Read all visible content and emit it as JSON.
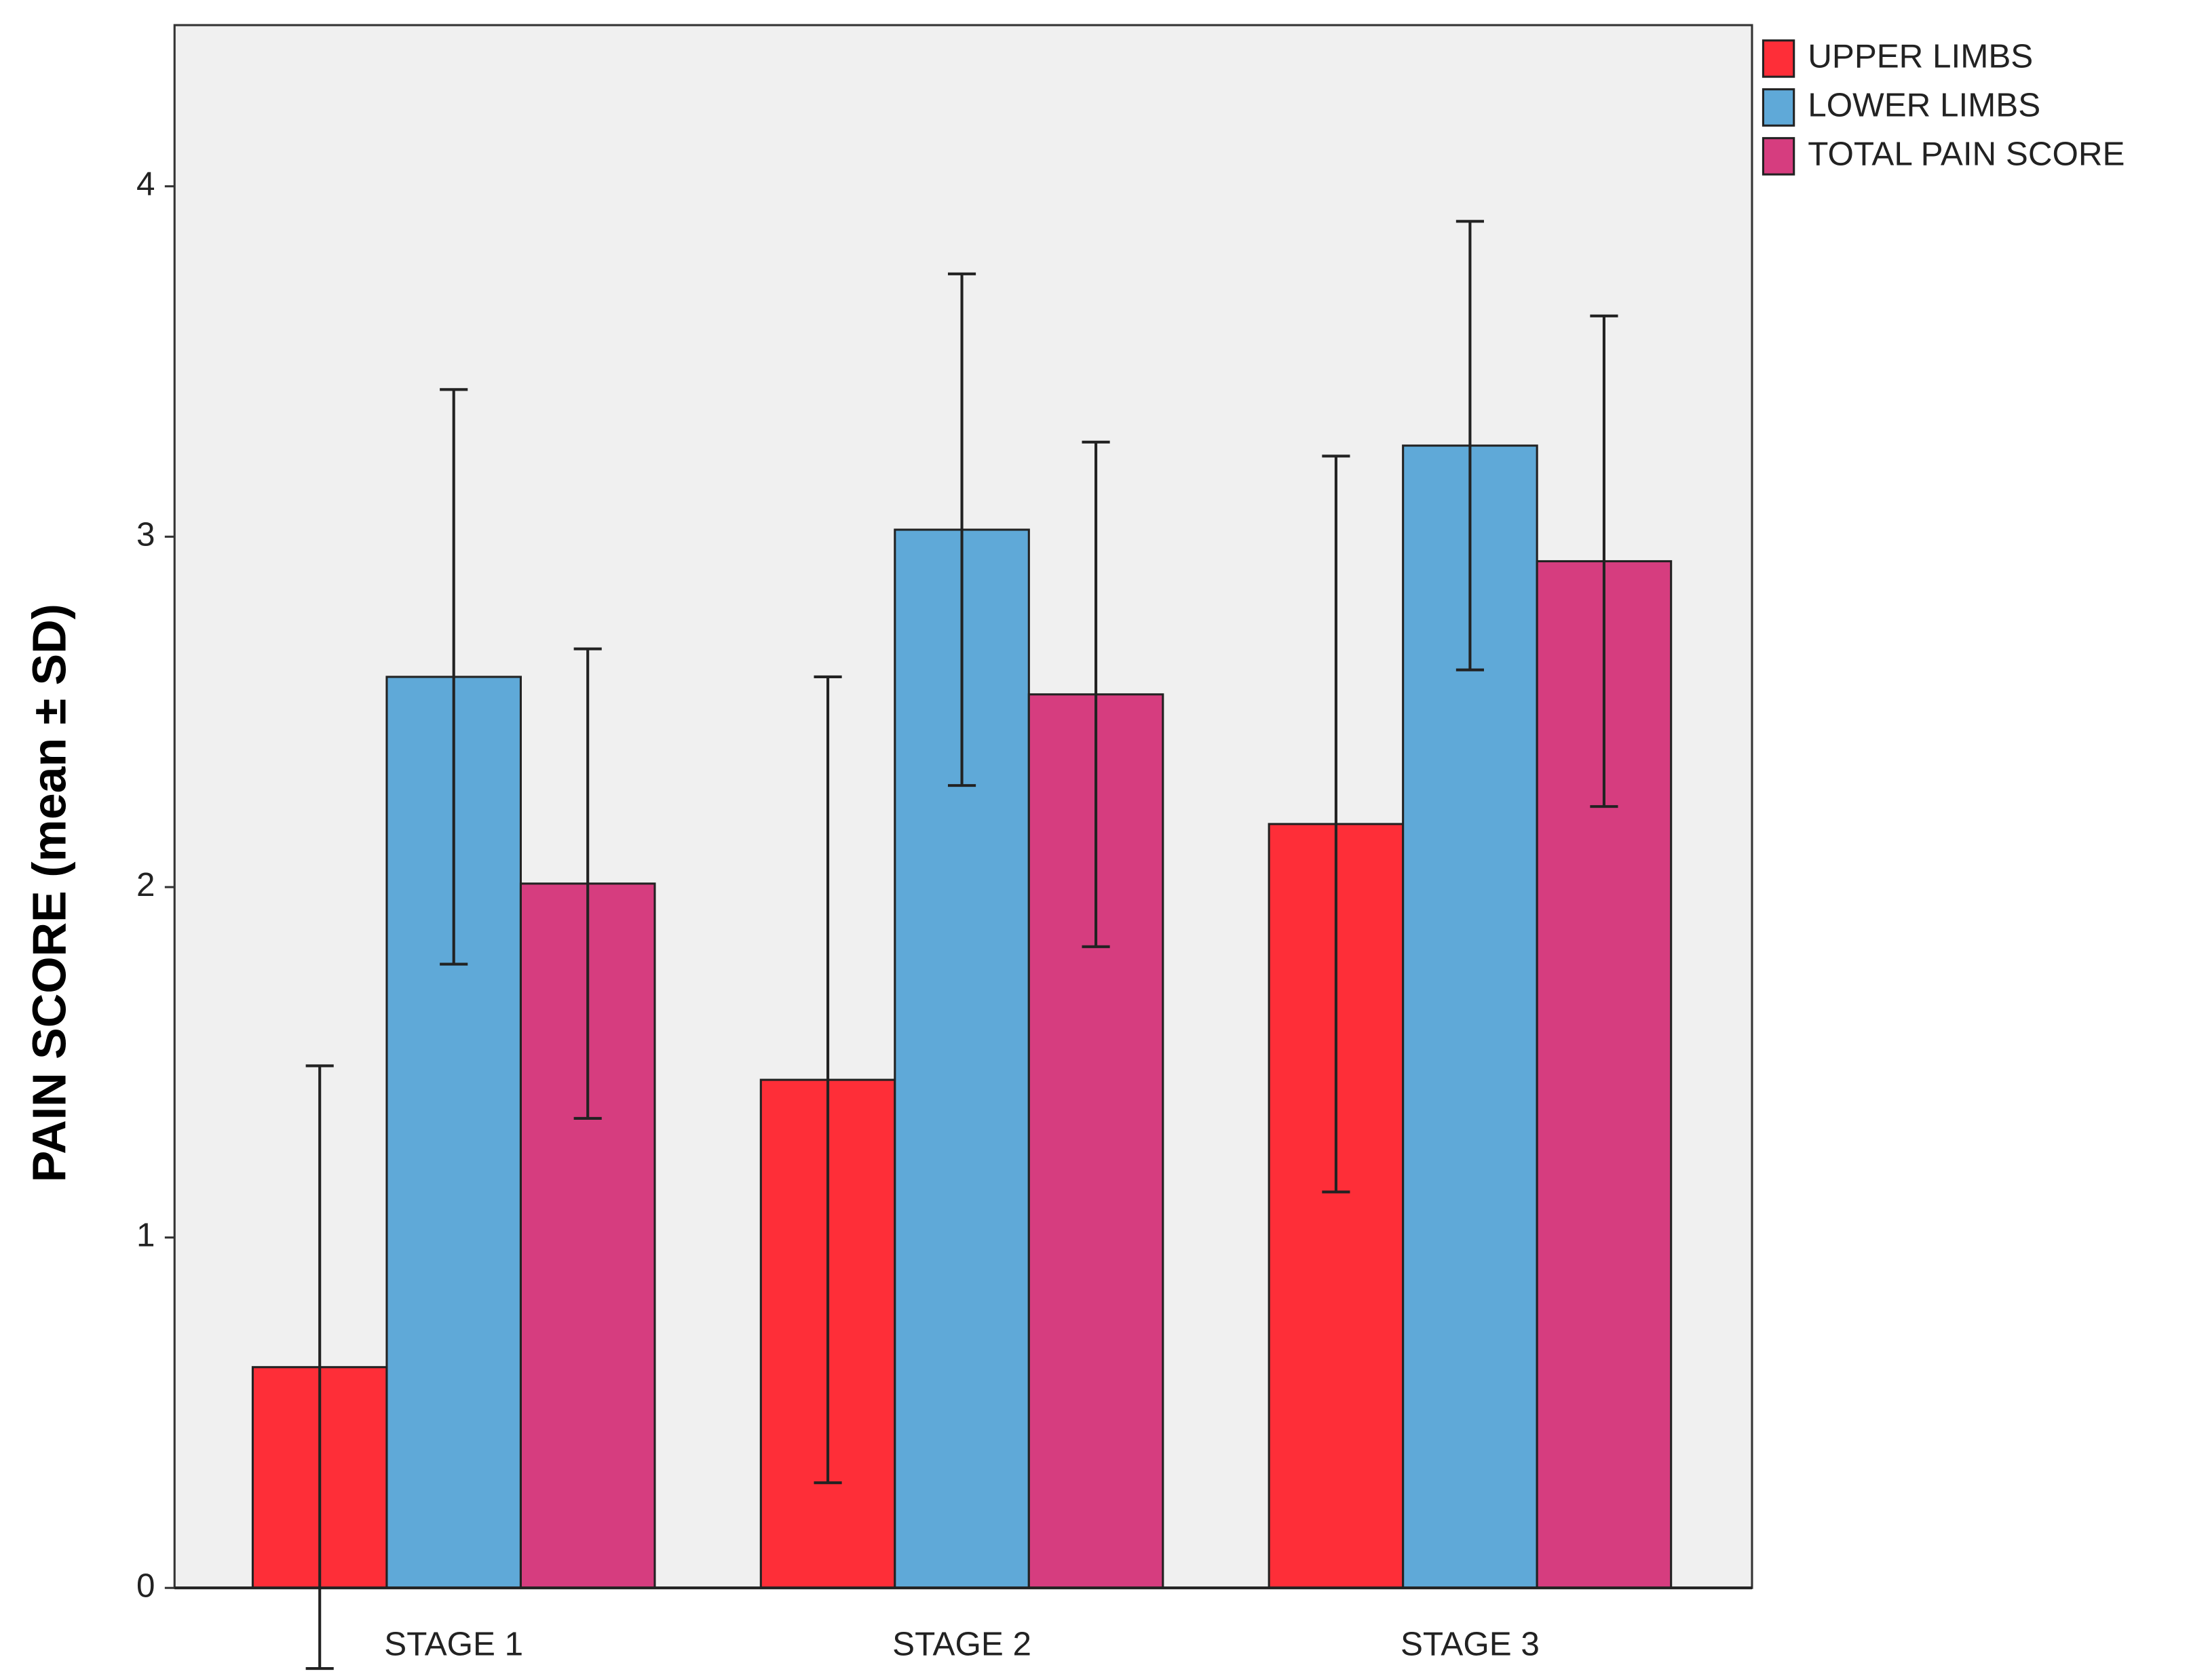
{
  "chart_data": {
    "type": "bar",
    "y_label": "PAIN SCORE (mean ± SD)",
    "categories": [
      "STAGE 1",
      "STAGE 2",
      "STAGE 3"
    ],
    "series": [
      {
        "name": "UPPER LIMBS",
        "color": "#fe2e38",
        "values": [
          0.63,
          1.45,
          2.18
        ],
        "errors": [
          0.86,
          1.15,
          1.05
        ]
      },
      {
        "name": "LOWER LIMBS",
        "color": "#5fa9d8",
        "values": [
          2.6,
          3.02,
          3.26
        ],
        "errors": [
          0.82,
          0.73,
          0.64
        ]
      },
      {
        "name": "TOTAL PAIN SCORE",
        "color": "#d63d7f",
        "values": [
          2.01,
          2.55,
          2.93
        ],
        "errors": [
          0.67,
          0.72,
          0.7
        ]
      }
    ],
    "ylim": [
      0,
      4.46
    ],
    "yticks": [
      0,
      1,
      2,
      3,
      4
    ],
    "grid": false,
    "legend": "right-outside"
  }
}
